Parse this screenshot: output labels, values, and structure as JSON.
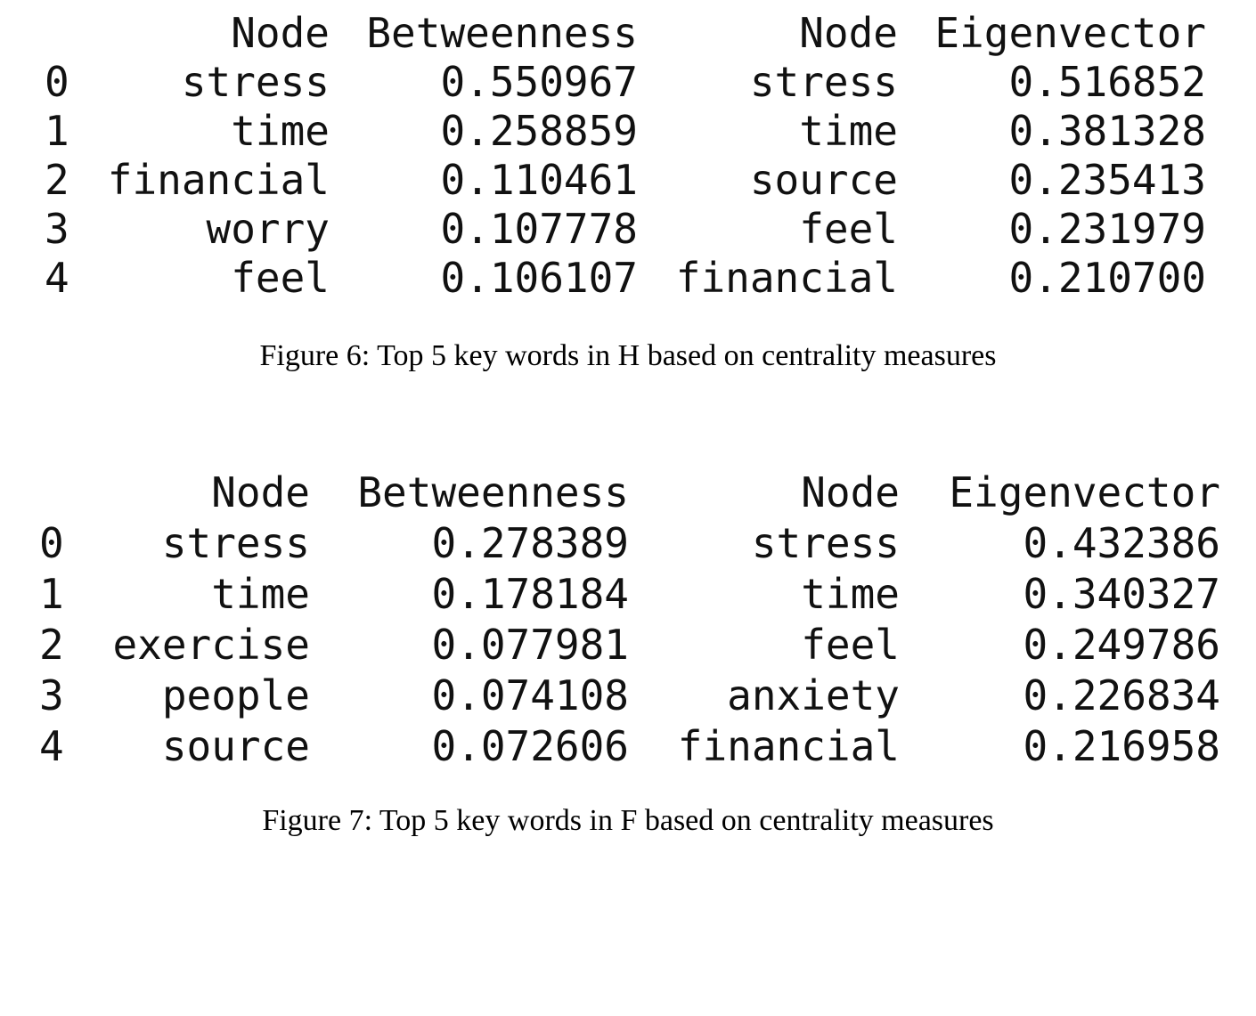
{
  "figures": [
    {
      "headers": [
        "Node",
        "Betweenness",
        "Node",
        "Eigenvector"
      ],
      "rows": [
        {
          "index": "0",
          "node_b": "stress",
          "betweenness": "0.550967",
          "node_e": "stress",
          "eigenvector": "0.516852"
        },
        {
          "index": "1",
          "node_b": "time",
          "betweenness": "0.258859",
          "node_e": "time",
          "eigenvector": "0.381328"
        },
        {
          "index": "2",
          "node_b": "financial",
          "betweenness": "0.110461",
          "node_e": "source",
          "eigenvector": "0.235413"
        },
        {
          "index": "3",
          "node_b": "worry",
          "betweenness": "0.107778",
          "node_e": "feel",
          "eigenvector": "0.231979"
        },
        {
          "index": "4",
          "node_b": "feel",
          "betweenness": "0.106107",
          "node_e": "financial",
          "eigenvector": "0.210700"
        }
      ],
      "caption": "Figure 6: Top 5 key words in H based on centrality measures"
    },
    {
      "headers": [
        "Node",
        "Betweenness",
        "Node",
        "Eigenvector"
      ],
      "rows": [
        {
          "index": "0",
          "node_b": "stress",
          "betweenness": "0.278389",
          "node_e": "stress",
          "eigenvector": "0.432386"
        },
        {
          "index": "1",
          "node_b": "time",
          "betweenness": "0.178184",
          "node_e": "time",
          "eigenvector": "0.340327"
        },
        {
          "index": "2",
          "node_b": "exercise",
          "betweenness": "0.077981",
          "node_e": "feel",
          "eigenvector": "0.249786"
        },
        {
          "index": "3",
          "node_b": "people",
          "betweenness": "0.074108",
          "node_e": "anxiety",
          "eigenvector": "0.226834"
        },
        {
          "index": "4",
          "node_b": "source",
          "betweenness": "0.072606",
          "node_e": "financial",
          "eigenvector": "0.216958"
        }
      ],
      "caption": "Figure 7: Top 5 key words in F based on centrality measures"
    }
  ]
}
